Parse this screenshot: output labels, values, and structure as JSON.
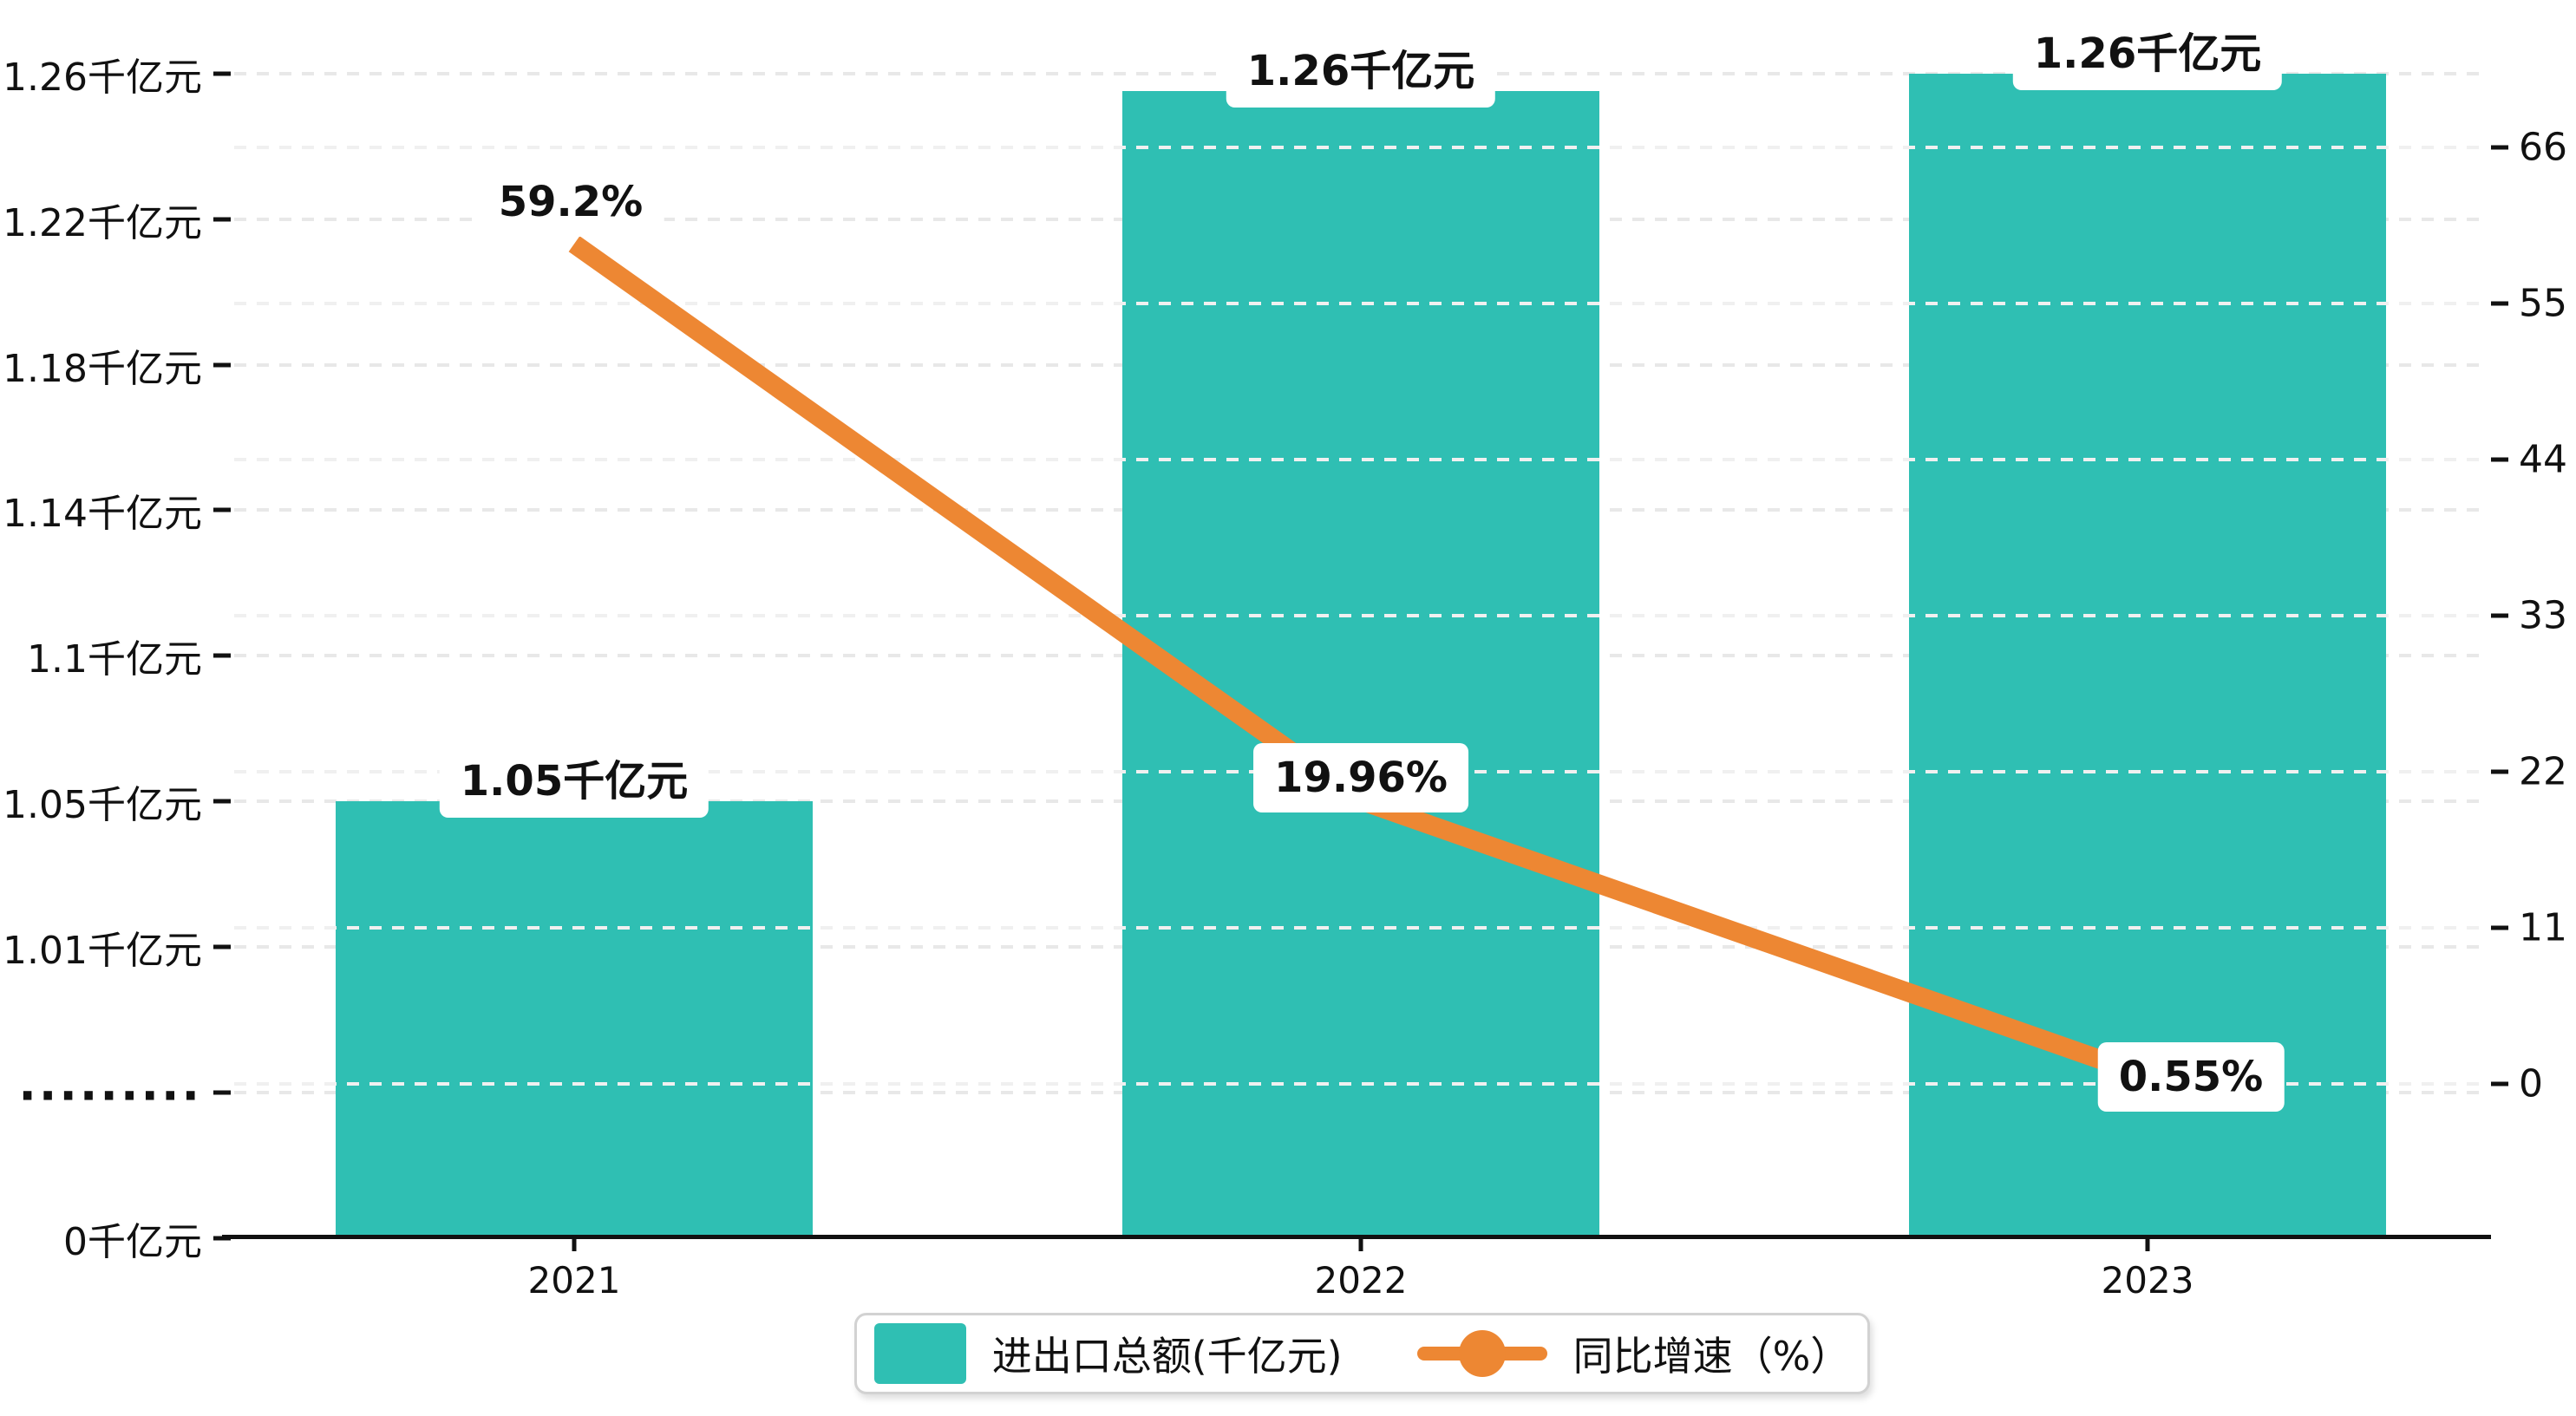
{
  "chart_data": {
    "type": "combo",
    "title": "",
    "categories": [
      "2021",
      "2022",
      "2023"
    ],
    "series": [
      {
        "name": "进出口总额(千亿元)",
        "type": "bar",
        "axis": "left",
        "color": "#2fbfb3",
        "values": [
          1.05,
          1.26,
          1.26
        ],
        "data_labels": [
          "1.05千亿元",
          "1.26千亿元",
          "1.26千亿元"
        ]
      },
      {
        "name": "同比增速（%）",
        "type": "line",
        "axis": "right",
        "color": "#ed8733",
        "values": [
          59.2,
          19.96,
          0.55
        ],
        "data_labels": [
          "59.2%",
          "19.96%",
          "0.55%"
        ]
      }
    ],
    "left_axis": {
      "unit": "千亿元",
      "tick_labels_top_to_bottom": [
        "1.26千亿元",
        "1.22千亿元",
        "1.18千亿元",
        "1.14千亿元",
        "1.1千亿元",
        "1.05千亿元",
        "1.01千亿元",
        ".........",
        "0千亿元"
      ],
      "tick_values_top_to_bottom": [
        1.26,
        1.22,
        1.18,
        1.14,
        1.1,
        1.05,
        1.01,
        null,
        0
      ],
      "break_row_index": 7
    },
    "right_axis": {
      "tick_labels_top_to_bottom": [
        "66",
        "55",
        "44",
        "33",
        "22",
        "11",
        "0"
      ],
      "min": 0,
      "max": 66,
      "step": 11
    },
    "x_axis": {
      "labels": [
        "2021",
        "2022",
        "2023"
      ]
    },
    "legend": {
      "position": "bottom",
      "items": [
        "进出口总额(千亿元)",
        "同比增速（%）"
      ]
    },
    "grid": {
      "on": true,
      "style": "dashed"
    }
  },
  "colors": {
    "bar": "#2fbfb3",
    "line": "#ed8733",
    "axis": "#111111",
    "grid_left": "#e8e8e8",
    "grid_right": "#f0f0f0",
    "label_box_bg": "#ffffff",
    "label_text": "#111111",
    "legend_border": "#d2d2d2",
    "background": "#ffffff"
  }
}
